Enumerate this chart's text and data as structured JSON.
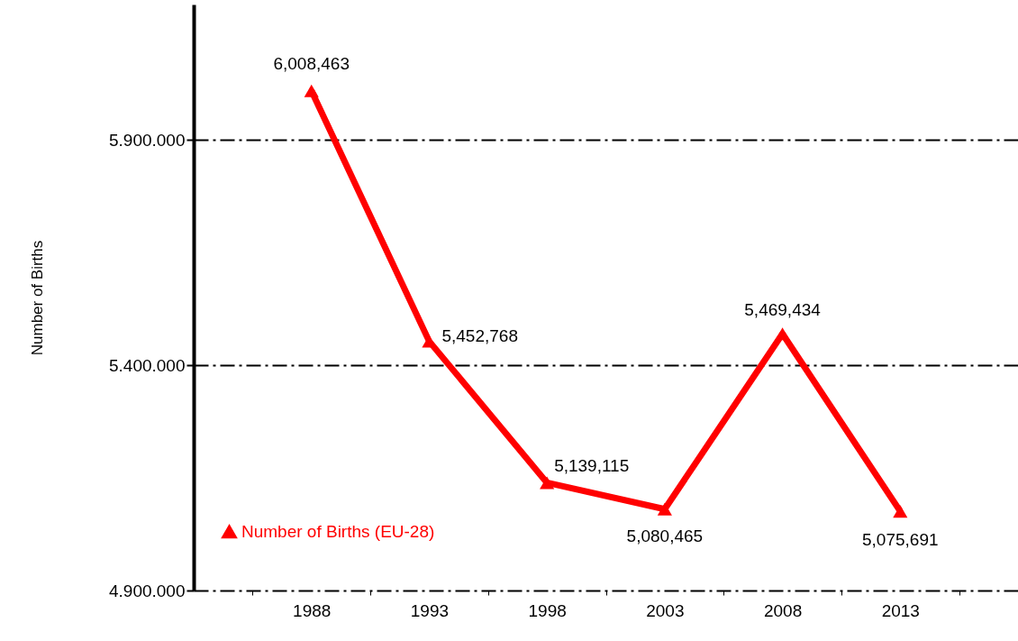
{
  "chart_data": {
    "type": "line",
    "ylabel": "Number of Births",
    "categories": [
      "1988",
      "1993",
      "1998",
      "2003",
      "2008",
      "2013"
    ],
    "series": [
      {
        "name": "Number of Births (EU-28)",
        "color": "#ff0000",
        "values": [
          6008463,
          5452768,
          5139115,
          5080465,
          5469434,
          5075691
        ]
      }
    ],
    "ylim": [
      4900000,
      6200000
    ],
    "yticks": [
      {
        "value": 4900000,
        "label": "4.900.000"
      },
      {
        "value": 5400000,
        "label": "5.400.000"
      },
      {
        "value": 5900000,
        "label": "5.900.000"
      }
    ],
    "value_labels": [
      "6,008,463",
      "5,452,768",
      "5,139,115",
      "5,080,465",
      "5,469,434",
      "5,075,691"
    ],
    "grid": "y",
    "legend": "bottom left",
    "marker": "triangle",
    "line_style": "solid"
  }
}
